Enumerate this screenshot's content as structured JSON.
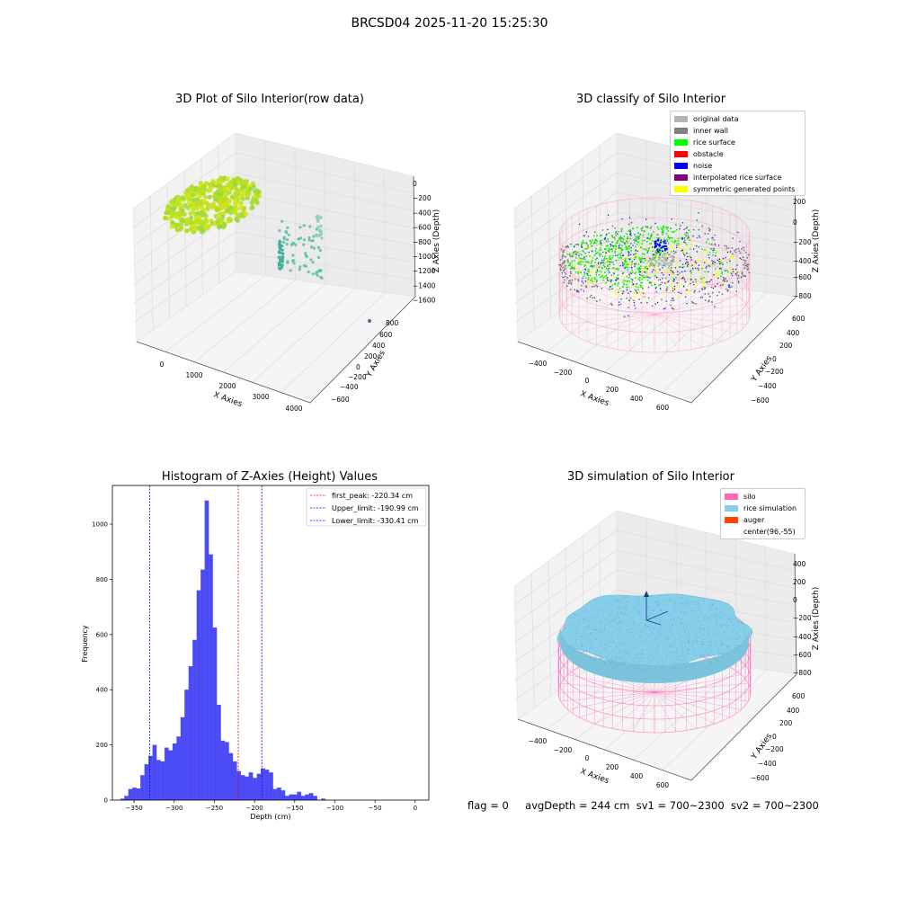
{
  "figure": {
    "suptitle": "BRCSD04 2025-11-20 15:25:30"
  },
  "panels": {
    "raw": {
      "title": "3D Plot of Silo Interior(row data)",
      "xlabel": "X Axies",
      "ylabel": "Y Axies",
      "zlabel": "Z Axies (Depth)",
      "xticks": [
        "0",
        "1000",
        "2000",
        "3000",
        "4000"
      ],
      "yticks": [
        "800",
        "600",
        "400",
        "200",
        "0",
        "−200",
        "−400",
        "−600"
      ],
      "zticks": [
        "0",
        "−200",
        "−400",
        "−600",
        "−800",
        "−1000",
        "−1200",
        "−1400",
        "−1600"
      ]
    },
    "classify": {
      "title": "3D classify of Silo Interior",
      "xlabel": "X Axies",
      "ylabel": "Y Axies",
      "zlabel": "Z Axies (Depth)",
      "xticks": [
        "−400",
        "−200",
        "0",
        "200",
        "400",
        "600"
      ],
      "yticks": [
        "600",
        "400",
        "200",
        "0",
        "−200",
        "−400",
        "−600"
      ],
      "zticks": [
        "200",
        "0",
        "−200",
        "−400",
        "−600",
        "−800"
      ],
      "legend": [
        {
          "label": "original data",
          "color": "#b4b4b4"
        },
        {
          "label": "inner wall",
          "color": "#808080"
        },
        {
          "label": "rice surface",
          "color": "#00ff00"
        },
        {
          "label": "obstacle",
          "color": "#ff0000"
        },
        {
          "label": "noise",
          "color": "#0000ff"
        },
        {
          "label": "interpolated rice surface",
          "color": "#800080"
        },
        {
          "label": "symmetric generated points",
          "color": "#ffff00"
        }
      ]
    },
    "simulation": {
      "title": "3D simulation of Silo Interior",
      "xlabel": "X Axies",
      "ylabel": "Y Axies",
      "zlabel": "Z Axies (Depth)",
      "xticks": [
        "−400",
        "−200",
        "0",
        "200",
        "400",
        "600"
      ],
      "yticks": [
        "600",
        "400",
        "200",
        "0",
        "−200",
        "−400",
        "−600"
      ],
      "zticks": [
        "400",
        "200",
        "0",
        "−200",
        "−400",
        "−600",
        "−800"
      ],
      "legend": [
        {
          "label": "silo",
          "color": "#ff69b4"
        },
        {
          "label": "rice simulation",
          "color": "#87ceeb"
        },
        {
          "label": "auger",
          "color": "#ff4500"
        },
        {
          "label": "center(96,-55)",
          "color": ""
        }
      ]
    }
  },
  "footer": {
    "flag": "flag = 0",
    "avg_depth": "avgDepth = 244 cm",
    "sv1": "sv1 = 700~2300",
    "sv2": "sv2 = 700~2300"
  },
  "chart_data": [
    {
      "type": "scatter",
      "title": "3D Plot of Silo Interior(row data)",
      "xlabel": "X Axies",
      "ylabel": "Y Axies",
      "zlabel": "Z Axies (Depth)",
      "xlim": [
        -500,
        4100
      ],
      "ylim": [
        -650,
        850
      ],
      "zlim": [
        -1650,
        50
      ]
    },
    {
      "type": "scatter",
      "title": "3D classify of Silo Interior",
      "xlabel": "X Axies",
      "ylabel": "Y Axies",
      "zlabel": "Z Axies (Depth)",
      "xlim": [
        -500,
        700
      ],
      "ylim": [
        -650,
        650
      ],
      "zlim": [
        -900,
        300
      ],
      "series": [
        {
          "name": "original data"
        },
        {
          "name": "inner wall"
        },
        {
          "name": "rice surface"
        },
        {
          "name": "obstacle"
        },
        {
          "name": "noise"
        },
        {
          "name": "interpolated rice surface"
        },
        {
          "name": "symmetric generated points"
        }
      ]
    },
    {
      "type": "bar",
      "title": "Histogram of Z-Axies (Height) Values",
      "xlabel": "Depth (cm)",
      "ylabel": "Frequency",
      "xlim": [
        -377,
        17
      ],
      "ylim": [
        0,
        1140
      ],
      "xticks": [
        -350,
        -300,
        -250,
        -200,
        -150,
        -100,
        -50,
        0
      ],
      "yticks": [
        0,
        200,
        400,
        600,
        800,
        1000
      ],
      "bin_start": -367,
      "bin_width": 5,
      "values": [
        5,
        15,
        40,
        45,
        42,
        90,
        130,
        160,
        200,
        145,
        140,
        190,
        180,
        205,
        230,
        300,
        400,
        485,
        580,
        760,
        835,
        1085,
        890,
        625,
        345,
        215,
        210,
        170,
        140,
        105,
        90,
        85,
        100,
        80,
        95,
        115,
        110,
        100,
        40,
        45,
        35,
        15,
        20,
        20,
        30,
        15,
        20,
        25,
        15,
        0,
        5
      ],
      "vlines": [
        {
          "label": "first_peak: -220.34 cm",
          "x": -220.34,
          "color": "#ff0000"
        },
        {
          "label": "Upper_limit: -190.99 cm",
          "x": -190.99,
          "color": "#0000ff"
        },
        {
          "label": "Lower_limit: -330.41 cm",
          "x": -330.41,
          "color": "#0000ff"
        }
      ],
      "bar_color": "#4b4bf5"
    },
    {
      "type": "area",
      "title": "3D simulation of Silo Interior",
      "xlabel": "X Axies",
      "ylabel": "Y Axies",
      "zlabel": "Z Axies (Depth)",
      "xlim": [
        -500,
        700
      ],
      "ylim": [
        -650,
        650
      ],
      "zlim": [
        -900,
        450
      ],
      "series": [
        {
          "name": "silo"
        },
        {
          "name": "rice simulation"
        },
        {
          "name": "auger"
        }
      ],
      "center": [
        96,
        -55
      ]
    }
  ]
}
